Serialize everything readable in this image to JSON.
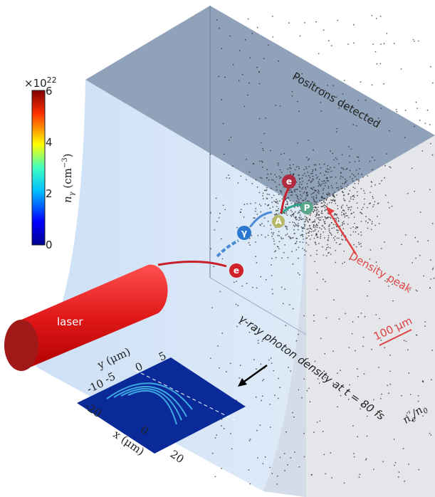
{
  "colorbar": {
    "exponent_base": "×10",
    "exponent": "22",
    "ticks": [
      "6",
      "4",
      "2",
      "0"
    ],
    "label": {
      "symbol": "n",
      "subscript": "γ",
      "unit": "(cm",
      "unit_exponent": "−3",
      "unit_close": ")"
    }
  },
  "panel_title": "Positrons detected",
  "particles": [
    "e",
    "γ",
    "A",
    "P",
    "e"
  ],
  "annotations": {
    "density_peak": "Density peak",
    "scale_bar": "100 μm",
    "laser": "laser",
    "caption": "γ-ray photon density at t = 80 fs",
    "density_axis": {
      "numerator": "n",
      "numerator_sub": "e",
      "slash": "/",
      "denominator": "n",
      "denominator_sub": "0"
    }
  },
  "inset": {
    "y_label": "y (μm)",
    "y_ticks": [
      "5",
      "0",
      "-5",
      "-10"
    ],
    "x_label": "x (μm)",
    "x_ticks": [
      "-20",
      "0",
      "20"
    ]
  }
}
